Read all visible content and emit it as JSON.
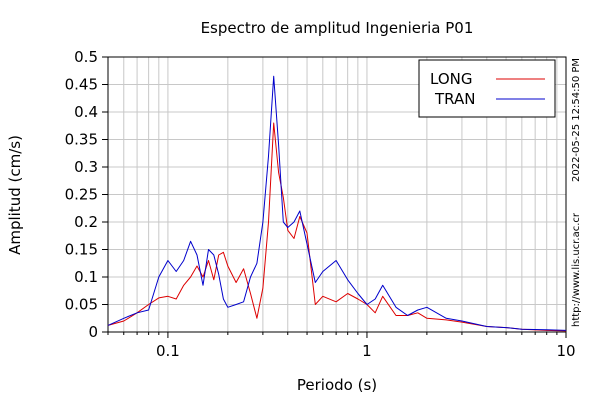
{
  "chart_data": {
    "type": "line",
    "title": "Espectro de amplitud Ingenieria P01",
    "xlabel": "Periodo (s)",
    "ylabel": "Amplitud (cm/s)",
    "x_scale": "log",
    "xlim": [
      0.05,
      10
    ],
    "ylim": [
      0,
      0.5
    ],
    "x_tick_labels": [
      "0.1",
      "1",
      "10"
    ],
    "y_tick_labels": [
      "0",
      "0.05",
      "0.1",
      "0.15",
      "0.2",
      "0.25",
      "0.3",
      "0.35",
      "0.4",
      "0.45",
      "0.5"
    ],
    "grid": true,
    "legend_position": "top-right",
    "side_text_date": "2022-05-25 12:54:50 PM",
    "side_text_url": "http://www.lis.ucr.ac.cr",
    "series": [
      {
        "name": "LONG",
        "color": "#dd0000",
        "x": [
          0.05,
          0.06,
          0.07,
          0.08,
          0.09,
          0.1,
          0.11,
          0.12,
          0.13,
          0.14,
          0.15,
          0.16,
          0.17,
          0.18,
          0.19,
          0.2,
          0.22,
          0.24,
          0.26,
          0.28,
          0.3,
          0.32,
          0.34,
          0.36,
          0.38,
          0.4,
          0.43,
          0.46,
          0.5,
          0.55,
          0.6,
          0.7,
          0.8,
          0.9,
          1.0,
          1.1,
          1.2,
          1.4,
          1.6,
          1.8,
          2.0,
          2.5,
          3.0,
          4.0,
          5.0,
          6.0,
          8.0,
          10.0
        ],
        "values": [
          0.012,
          0.02,
          0.035,
          0.05,
          0.062,
          0.065,
          0.06,
          0.085,
          0.1,
          0.12,
          0.1,
          0.13,
          0.095,
          0.14,
          0.145,
          0.12,
          0.09,
          0.115,
          0.07,
          0.025,
          0.08,
          0.2,
          0.38,
          0.29,
          0.245,
          0.185,
          0.17,
          0.21,
          0.18,
          0.05,
          0.065,
          0.055,
          0.07,
          0.06,
          0.05,
          0.035,
          0.065,
          0.03,
          0.03,
          0.035,
          0.025,
          0.022,
          0.018,
          0.01,
          0.008,
          0.005,
          0.003,
          0.002
        ]
      },
      {
        "name": "TRAN",
        "color": "#0000cc",
        "x": [
          0.05,
          0.06,
          0.07,
          0.08,
          0.09,
          0.1,
          0.11,
          0.12,
          0.13,
          0.14,
          0.15,
          0.16,
          0.17,
          0.18,
          0.19,
          0.2,
          0.22,
          0.24,
          0.26,
          0.28,
          0.3,
          0.32,
          0.34,
          0.36,
          0.38,
          0.4,
          0.43,
          0.46,
          0.5,
          0.55,
          0.6,
          0.7,
          0.8,
          0.9,
          1.0,
          1.1,
          1.2,
          1.4,
          1.6,
          1.8,
          2.0,
          2.5,
          3.0,
          4.0,
          5.0,
          6.0,
          8.0,
          10.0
        ],
        "values": [
          0.012,
          0.025,
          0.035,
          0.04,
          0.1,
          0.13,
          0.11,
          0.13,
          0.165,
          0.14,
          0.085,
          0.15,
          0.14,
          0.105,
          0.06,
          0.045,
          0.05,
          0.055,
          0.1,
          0.125,
          0.2,
          0.32,
          0.465,
          0.34,
          0.2,
          0.19,
          0.2,
          0.22,
          0.16,
          0.09,
          0.11,
          0.13,
          0.095,
          0.07,
          0.05,
          0.06,
          0.085,
          0.045,
          0.03,
          0.04,
          0.045,
          0.025,
          0.02,
          0.01,
          0.008,
          0.005,
          0.004,
          0.003
        ]
      }
    ]
  }
}
